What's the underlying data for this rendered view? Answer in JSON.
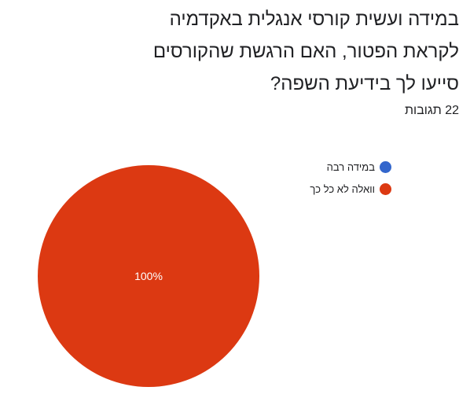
{
  "question": "במידה ועשית קורסי אנגלית באקדמיה לקראת הפטור, האם הרגשת שהקורסים סייעו לך בידיעת השפה?",
  "responses_count": "22 תגובות",
  "chart_data": {
    "type": "pie",
    "categories": [
      "במידה רבה",
      "וואלה לא כל כך"
    ],
    "values": [
      0,
      100
    ],
    "unit": "%",
    "slice_labels": [
      "100%"
    ],
    "colors": [
      "#3366cc",
      "#dc3912"
    ],
    "legend_position": "top-right"
  }
}
